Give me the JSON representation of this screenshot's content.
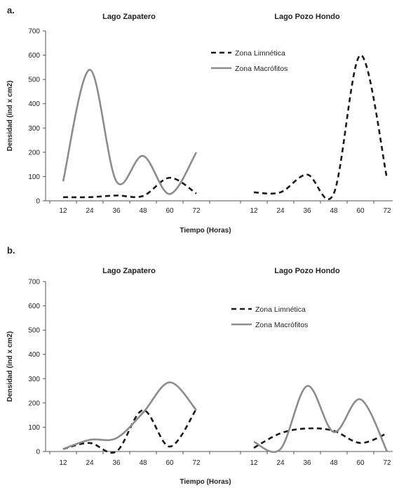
{
  "panels": [
    {
      "label": "a.",
      "ylabel": "Densidad (ind x cm2)",
      "xlabel": "Tiempo (Horas)",
      "legend": {
        "limnetica": "Zona Limnética",
        "macrofitos": "Zona Macrófitos",
        "position": "top-center"
      },
      "lakes": [
        {
          "title": "Lago Zapatero"
        },
        {
          "title": "Lago Pozo Hondo"
        }
      ]
    },
    {
      "label": "b.",
      "ylabel": "Densidad (ind x cm2)",
      "xlabel": "Tiempo (Horas)",
      "legend": {
        "limnetica": "Zona Limnética",
        "macrofitos": "Zona Macrófitos",
        "position": "top-right"
      },
      "lakes": [
        {
          "title": "Lago Zapatero"
        },
        {
          "title": "Lago Pozo Hondo"
        }
      ]
    }
  ],
  "colors": {
    "limnetica": "#1a1a1a",
    "macrofitos": "#8c8c8c",
    "axis": "#555555"
  },
  "chart_data": [
    {
      "type": "line",
      "panel": "a.",
      "ylim": [
        0,
        700
      ],
      "yticks": [
        0,
        100,
        200,
        300,
        400,
        500,
        600,
        700
      ],
      "x": [
        12,
        24,
        36,
        48,
        60,
        72
      ],
      "groups": [
        {
          "title": "Lago Zapatero",
          "series": [
            {
              "name": "Zona Limnética",
              "style": "dashed",
              "values": [
                15,
                15,
                22,
                20,
                95,
                30
              ]
            },
            {
              "name": "Zona Macrófitos",
              "style": "solid",
              "values": [
                80,
                540,
                80,
                185,
                28,
                200
              ]
            }
          ]
        },
        {
          "title": "Lago Pozo Hondo",
          "series": [
            {
              "name": "Zona Limnética",
              "style": "dashed",
              "values": [
                35,
                35,
                108,
                30,
                600,
                90
              ]
            }
          ]
        }
      ]
    },
    {
      "type": "line",
      "panel": "b.",
      "ylim": [
        0,
        700
      ],
      "yticks": [
        0,
        100,
        200,
        300,
        400,
        500,
        600,
        700
      ],
      "x": [
        12,
        24,
        36,
        48,
        60,
        72
      ],
      "groups": [
        {
          "title": "Lago Zapatero",
          "series": [
            {
              "name": "Zona Limnética",
              "style": "dashed",
              "values": [
                10,
                35,
                0,
                170,
                20,
                175
              ]
            },
            {
              "name": "Zona Macrófitos",
              "style": "solid",
              "values": [
                10,
                48,
                55,
                160,
                285,
                170
              ]
            }
          ]
        },
        {
          "title": "Lago Pozo Hondo",
          "series": [
            {
              "name": "Zona Limnética",
              "style": "dashed",
              "values": [
                15,
                75,
                95,
                85,
                35,
                75
              ]
            },
            {
              "name": "Zona Macrófitos",
              "style": "solid",
              "values": [
                40,
                10,
                270,
                80,
                215,
                0
              ]
            }
          ]
        }
      ]
    }
  ]
}
